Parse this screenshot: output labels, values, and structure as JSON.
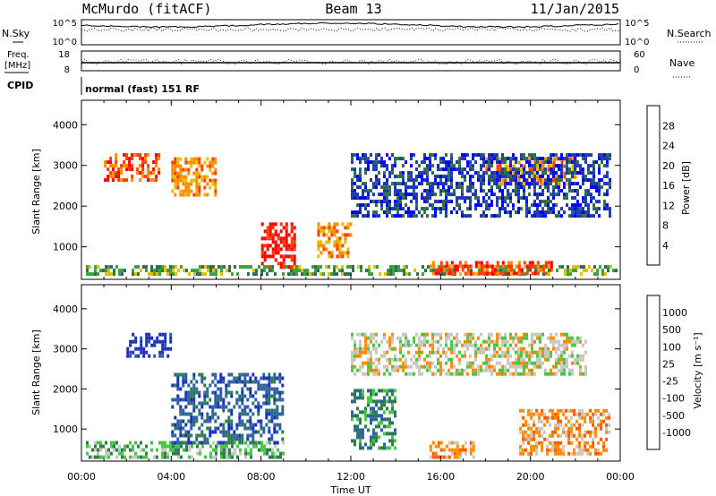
{
  "header": {
    "station": "McMurdo (fitACF)",
    "beam": "Beam 13",
    "date": "11/Jan/2015"
  },
  "noise_panel": {
    "left_label": "N.Sky",
    "right_label": "N.Search",
    "left_ticks": [
      "10^5",
      "10^0"
    ],
    "right_ticks": [
      "10^5",
      "10^0"
    ]
  },
  "freq_panel": {
    "left_label_line1": "Freq.",
    "left_label_line2": "[MHz]",
    "right_label": "Nave",
    "left_ticks": [
      "18",
      "8"
    ],
    "right_ticks": [
      "60",
      "0"
    ]
  },
  "cpid": {
    "label": "CPID",
    "value": "normal (fast) 151 RF"
  },
  "colors": {
    "power_scale": [
      "#0000ff",
      "#1e3ca8",
      "#2e6d4f",
      "#3ca03c",
      "#e0c000",
      "#ff8c00",
      "#ff4000",
      "#ff0000"
    ],
    "velocity_scale": [
      "#1b2fbf",
      "#2d60a8",
      "#2e7d4f",
      "#46c846",
      "#c8c8c0",
      "#ff8c00",
      "#ff5a00",
      "#ff0000"
    ]
  },
  "chart_data": [
    {
      "type": "heatmap",
      "panel": "power",
      "ylabel": "Slant Range [km]",
      "ylim": [
        200,
        4600
      ],
      "yticks": [
        "1000",
        "2000",
        "3000",
        "4000"
      ],
      "xlim_hours": [
        0,
        24
      ],
      "colorbar_label": "Power [dB]",
      "colorbar_ticks": [
        "4",
        "8",
        "12",
        "16",
        "20",
        "24",
        "28"
      ],
      "features": [
        {
          "t0": 0.2,
          "t1": 23.8,
          "r0": 300,
          "r1": 550,
          "level": 3
        },
        {
          "t0": 1.0,
          "t1": 3.5,
          "r0": 2600,
          "r1": 3300,
          "level": 6
        },
        {
          "t0": 4.0,
          "t1": 6.0,
          "r0": 2300,
          "r1": 3200,
          "level": 5
        },
        {
          "t0": 8.0,
          "t1": 9.5,
          "r0": 500,
          "r1": 1600,
          "level": 7
        },
        {
          "t0": 10.5,
          "t1": 12.0,
          "r0": 800,
          "r1": 1600,
          "level": 5
        },
        {
          "t0": 15.5,
          "t1": 21.0,
          "r0": 300,
          "r1": 650,
          "level": 6
        },
        {
          "t0": 18.0,
          "t1": 22.0,
          "r0": 2500,
          "r1": 3200,
          "level": 5
        },
        {
          "t0": 12.0,
          "t1": 23.5,
          "r0": 1800,
          "r1": 3300,
          "level": 1
        }
      ]
    },
    {
      "type": "heatmap",
      "panel": "velocity",
      "ylabel": "Slant Range [km]",
      "xlabel": "Time UT",
      "ylim": [
        200,
        4600
      ],
      "yticks": [
        "1000",
        "2000",
        "3000",
        "4000"
      ],
      "xticks": [
        "00:00",
        "04:00",
        "08:00",
        "12:00",
        "16:00",
        "20:00",
        "00:00"
      ],
      "xlim_hours": [
        0,
        24
      ],
      "colorbar_label": "Velocity [m s⁻¹]",
      "colorbar_ticks": [
        "1000",
        "500",
        "100",
        "25",
        "-25",
        "-100",
        "-500",
        "-1000"
      ],
      "features": [
        {
          "t0": 0.2,
          "t1": 9.0,
          "r0": 300,
          "r1": 700,
          "level": 3
        },
        {
          "t0": 2.0,
          "t1": 4.0,
          "r0": 2800,
          "r1": 3400,
          "level": 0
        },
        {
          "t0": 4.0,
          "t1": 9.0,
          "r0": 700,
          "r1": 2400,
          "level": 1
        },
        {
          "t0": 12.0,
          "t1": 22.5,
          "r0": 2400,
          "r1": 3400,
          "level": 4
        },
        {
          "t0": 15.5,
          "t1": 17.5,
          "r0": 300,
          "r1": 700,
          "level": 5
        },
        {
          "t0": 19.5,
          "t1": 23.5,
          "r0": 400,
          "r1": 1500,
          "level": 5
        },
        {
          "t0": 12.0,
          "t1": 14.0,
          "r0": 500,
          "r1": 2000,
          "level": 2
        }
      ]
    }
  ]
}
